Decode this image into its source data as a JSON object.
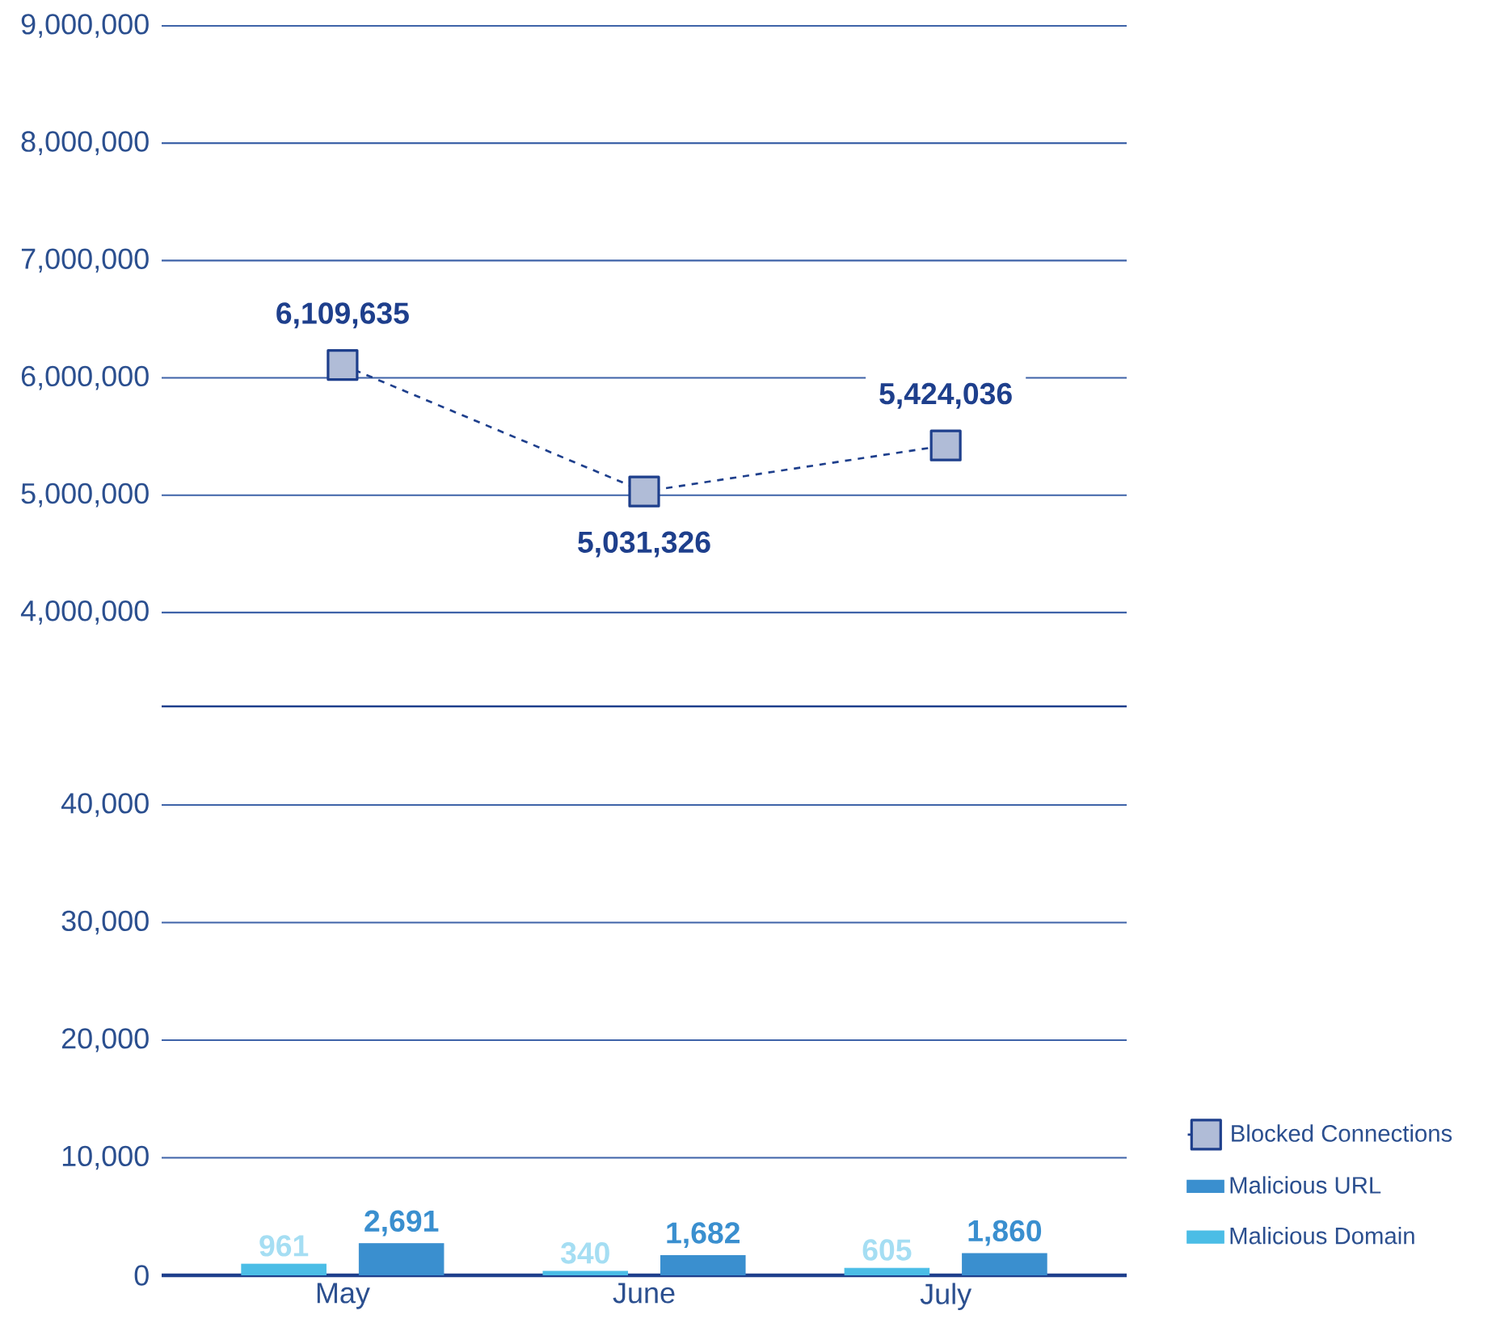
{
  "chart_data": [
    {
      "type": "line",
      "categories": [
        null,
        null,
        null
      ],
      "series": [
        {
          "name": "Blocked Connections",
          "color": "#1e3f8c",
          "values": [
            6109635,
            5031326,
            5424036
          ],
          "value_labels": [
            "6,109,635",
            "5,031,326",
            "5,424,036"
          ]
        }
      ],
      "ylim": [
        3200000,
        9000000
      ],
      "yticks": [
        {
          "value": 4000000,
          "label": "4,000,000"
        },
        {
          "value": 5000000,
          "label": "5,000,000"
        },
        {
          "value": 6000000,
          "label": "6,000,000"
        },
        {
          "value": 7000000,
          "label": "7,000,000"
        },
        {
          "value": 8000000,
          "label": "8,000,000"
        },
        {
          "value": 9000000,
          "label": "9,000,000"
        }
      ],
      "grid": "y",
      "legend": "right",
      "marker": "square",
      "line_style": "dashed",
      "tick_labels": "y"
    },
    {
      "type": "bar",
      "categories": [
        "May",
        "June",
        "July"
      ],
      "series": [
        {
          "name": "Malicious Domain",
          "color": "#4bbde6",
          "values": [
            961,
            340,
            605
          ],
          "value_labels": [
            "961",
            "340",
            "605"
          ]
        },
        {
          "name": "Malicious URL",
          "color": "#3a8fcf",
          "values": [
            2691,
            1682,
            1860
          ],
          "value_labels": [
            "2,691",
            "1,682",
            "1,860"
          ]
        }
      ],
      "ylim": [
        0,
        40000
      ],
      "yticks": [
        0,
        {
          "value": 10000,
          "label": "10,000"
        },
        {
          "value": 20000,
          "label": "20,000"
        },
        {
          "value": 30000,
          "label": "30,000"
        },
        {
          "value": 40000,
          "label": "40,000"
        }
      ],
      "grid": "y",
      "legend": "right"
    }
  ]
}
